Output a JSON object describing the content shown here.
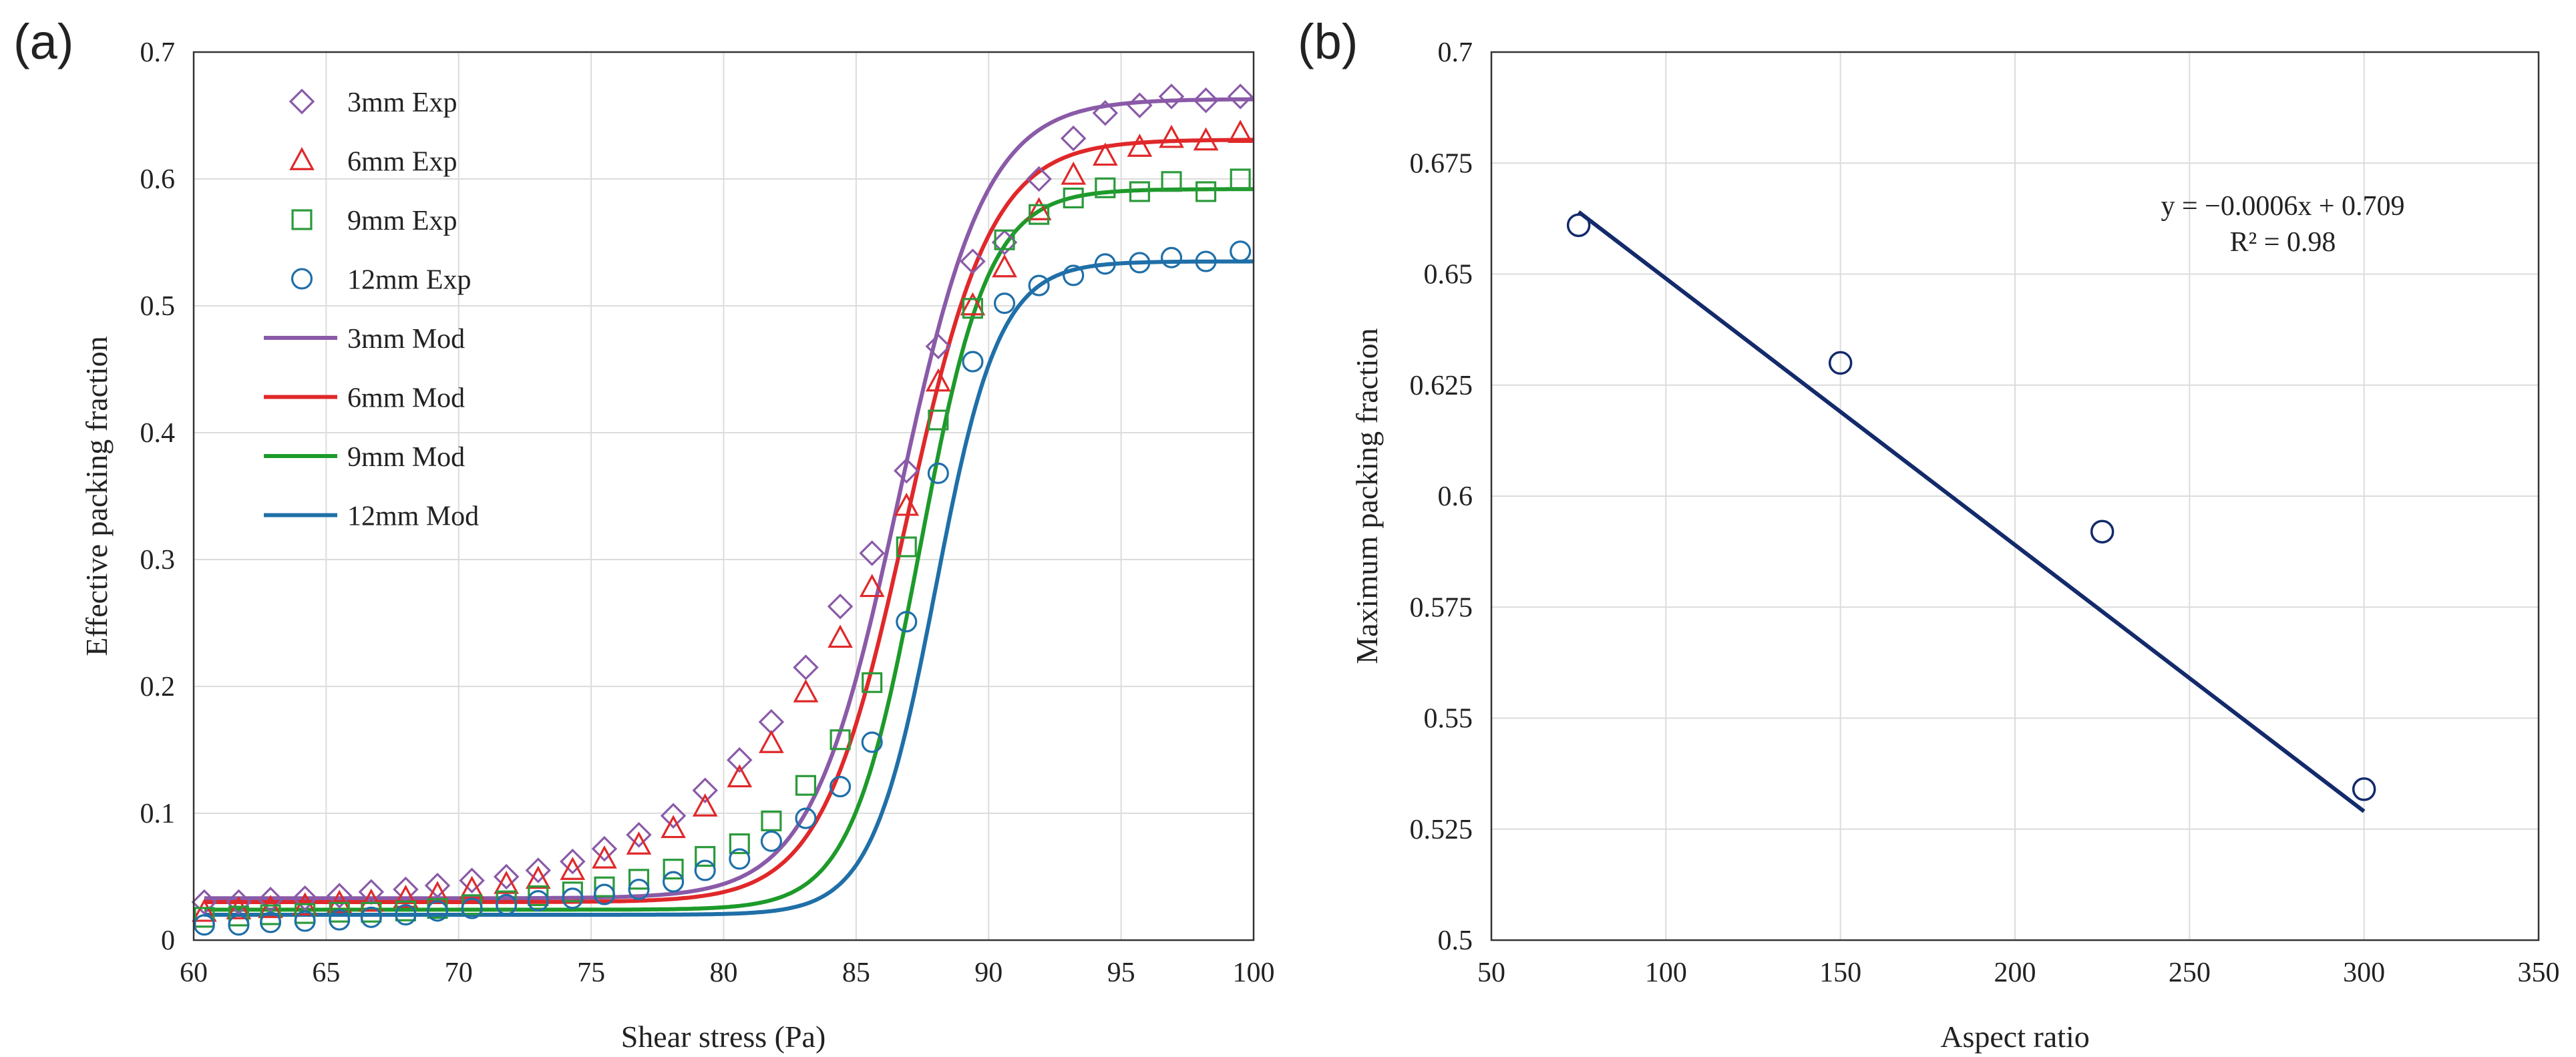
{
  "chart_data": [
    {
      "panel_label": "(a)",
      "type": "scatter",
      "title": "",
      "xlabel": "Shear stress (Pa)",
      "ylabel": "Effective packing fraction",
      "xlim": [
        60,
        100
      ],
      "ylim": [
        0,
        0.7
      ],
      "xticks": [
        60,
        65,
        70,
        75,
        80,
        85,
        90,
        95,
        100
      ],
      "xtick_labels": [
        "60",
        "65",
        "70",
        "75",
        "80",
        "85",
        "90",
        "95",
        "100"
      ],
      "yticks": [
        0,
        0.1,
        0.2,
        0.3,
        0.4,
        0.5,
        0.6,
        0.7
      ],
      "ytick_labels": [
        "0",
        "0.1",
        "0.2",
        "0.3",
        "0.4",
        "0.5",
        "0.6",
        "0.7"
      ],
      "grid": true,
      "legend_position": "top-left",
      "x": [
        60.4,
        61.7,
        62.9,
        64.2,
        65.5,
        66.7,
        68.0,
        69.2,
        70.5,
        71.8,
        73.0,
        74.3,
        75.5,
        76.8,
        78.1,
        79.3,
        80.6,
        81.8,
        83.1,
        84.4,
        85.6,
        86.9,
        88.1,
        89.4,
        90.6,
        91.9,
        93.2,
        94.4,
        95.7,
        96.9,
        98.2,
        99.5
      ],
      "series": [
        {
          "name": "3mm Exp",
          "kind": "marker",
          "marker": "diamond",
          "color": "#8a5aa8",
          "values": [
            0.03,
            0.03,
            0.032,
            0.033,
            0.035,
            0.038,
            0.04,
            0.043,
            0.047,
            0.05,
            0.055,
            0.062,
            0.072,
            0.083,
            0.098,
            0.118,
            0.142,
            0.172,
            0.215,
            0.263,
            0.305,
            0.37,
            0.468,
            0.535,
            0.55,
            0.6,
            0.632,
            0.652,
            0.658,
            0.665,
            0.662,
            0.665
          ]
        },
        {
          "name": "6mm Exp",
          "kind": "marker",
          "marker": "triangle",
          "color": "#e0282a",
          "values": [
            0.022,
            0.024,
            0.025,
            0.027,
            0.029,
            0.03,
            0.033,
            0.036,
            0.04,
            0.044,
            0.048,
            0.055,
            0.064,
            0.075,
            0.088,
            0.105,
            0.128,
            0.155,
            0.195,
            0.238,
            0.278,
            0.342,
            0.44,
            0.5,
            0.53,
            0.575,
            0.603,
            0.618,
            0.625,
            0.632,
            0.63,
            0.636
          ]
        },
        {
          "name": "9mm Exp",
          "kind": "marker",
          "marker": "square",
          "color": "#2a9a3a",
          "values": [
            0.018,
            0.019,
            0.02,
            0.021,
            0.022,
            0.022,
            0.023,
            0.025,
            0.028,
            0.031,
            0.035,
            0.038,
            0.042,
            0.048,
            0.056,
            0.066,
            0.076,
            0.094,
            0.122,
            0.158,
            0.203,
            0.31,
            0.41,
            0.498,
            0.552,
            0.572,
            0.585,
            0.593,
            0.59,
            0.598,
            0.59,
            0.6
          ]
        },
        {
          "name": "12mm Exp",
          "kind": "marker",
          "marker": "circle",
          "color": "#1f6fa8",
          "values": [
            0.012,
            0.012,
            0.014,
            0.015,
            0.016,
            0.018,
            0.02,
            0.023,
            0.025,
            0.028,
            0.031,
            0.033,
            0.036,
            0.04,
            0.046,
            0.055,
            0.064,
            0.078,
            0.096,
            0.121,
            0.156,
            0.251,
            0.368,
            0.456,
            0.502,
            0.516,
            0.524,
            0.533,
            0.534,
            0.538,
            0.535,
            0.543
          ]
        },
        {
          "name": "3mm Mod",
          "kind": "line",
          "color": "#8a5aa8",
          "model": {
            "low": 0.033,
            "high": 0.663,
            "center": 86.6,
            "width": 1.65
          }
        },
        {
          "name": "6mm Mod",
          "kind": "line",
          "color": "#e0282a",
          "model": {
            "low": 0.03,
            "high": 0.631,
            "center": 86.9,
            "width": 1.6
          }
        },
        {
          "name": "9mm Mod",
          "kind": "line",
          "color": "#1d9a2a",
          "model": {
            "low": 0.024,
            "high": 0.592,
            "center": 87.4,
            "width": 1.3
          }
        },
        {
          "name": "12mm Mod",
          "kind": "line",
          "color": "#1f6fa8",
          "model": {
            "low": 0.02,
            "high": 0.535,
            "center": 88.0,
            "width": 1.2
          }
        }
      ]
    },
    {
      "panel_label": "(b)",
      "type": "scatter",
      "title": "",
      "xlabel": "Aspect ratio",
      "ylabel": "Maximum packing fraction",
      "xlim": [
        50,
        350
      ],
      "ylim": [
        0.5,
        0.7
      ],
      "xticks": [
        50,
        100,
        150,
        200,
        250,
        300,
        350
      ],
      "xtick_labels": [
        "50",
        "100",
        "150",
        "200",
        "250",
        "300",
        "350"
      ],
      "yticks": [
        0.5,
        0.525,
        0.55,
        0.575,
        0.6,
        0.625,
        0.65,
        0.675,
        0.7
      ],
      "ytick_labels": [
        "0.5",
        "0.525",
        "0.55",
        "0.575",
        "0.6",
        "0.625",
        "0.65",
        "0.675",
        "0.7"
      ],
      "grid": true,
      "points": {
        "x": [
          75,
          150,
          225,
          300
        ],
        "y": [
          0.661,
          0.63,
          0.592,
          0.534
        ],
        "color": "#132a6b"
      },
      "trendline": {
        "x_range": [
          75,
          300
        ],
        "slope": -0.0006,
        "intercept": 0.709,
        "color": "#132a6b"
      },
      "annotation": {
        "equation": "y = −0.0006x + 0.709",
        "r2": "R² = 0.98"
      }
    }
  ]
}
